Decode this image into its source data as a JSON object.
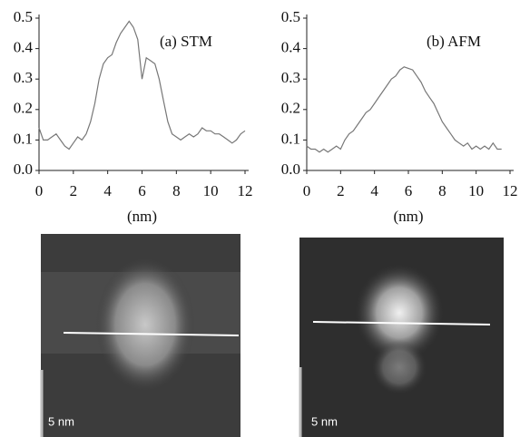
{
  "chart_data": [
    {
      "type": "line",
      "title": "(a) STM",
      "xlabel": "(nm)",
      "color": "#777777",
      "x": [
        0,
        0.25,
        0.5,
        0.75,
        1,
        1.25,
        1.5,
        1.75,
        2,
        2.25,
        2.5,
        2.75,
        3,
        3.25,
        3.5,
        3.75,
        4,
        4.25,
        4.5,
        4.75,
        5,
        5.25,
        5.5,
        5.75,
        6,
        6.25,
        6.5,
        6.75,
        7,
        7.25,
        7.5,
        7.75,
        8,
        8.25,
        8.5,
        8.75,
        9,
        9.25,
        9.5,
        9.75,
        10,
        10.25,
        10.5,
        10.75,
        11,
        11.25,
        11.5,
        11.75,
        12
      ],
      "values": [
        0.14,
        0.1,
        0.1,
        0.11,
        0.12,
        0.1,
        0.08,
        0.07,
        0.09,
        0.11,
        0.1,
        0.12,
        0.16,
        0.22,
        0.3,
        0.35,
        0.37,
        0.38,
        0.42,
        0.45,
        0.47,
        0.49,
        0.47,
        0.43,
        0.3,
        0.37,
        0.36,
        0.35,
        0.3,
        0.23,
        0.16,
        0.12,
        0.11,
        0.1,
        0.11,
        0.12,
        0.11,
        0.12,
        0.14,
        0.13,
        0.13,
        0.12,
        0.12,
        0.11,
        0.1,
        0.09,
        0.1,
        0.12,
        0.13
      ],
      "xlim": [
        0,
        12
      ],
      "xticks": [
        0,
        2,
        4,
        6,
        8,
        10,
        12
      ],
      "ylim": [
        0,
        0.5
      ],
      "yticks": [
        {
          "value": 0,
          "label": "0.0"
        },
        0.1,
        0.2,
        0.3,
        0.4,
        0.5
      ]
    },
    {
      "type": "line",
      "title": "(b) AFM",
      "xlabel": "(nm)",
      "color": "#777777",
      "x": [
        0,
        0.25,
        0.5,
        0.75,
        1,
        1.25,
        1.5,
        1.75,
        2,
        2.25,
        2.5,
        2.75,
        3,
        3.25,
        3.5,
        3.75,
        4,
        4.25,
        4.5,
        4.75,
        5,
        5.25,
        5.5,
        5.75,
        6,
        6.25,
        6.5,
        6.75,
        7,
        7.25,
        7.5,
        7.75,
        8,
        8.25,
        8.5,
        8.75,
        9,
        9.25,
        9.5,
        9.75,
        10,
        10.25,
        10.5,
        10.75,
        11,
        11.25,
        11.5
      ],
      "values": [
        0.08,
        0.07,
        0.07,
        0.06,
        0.07,
        0.06,
        0.07,
        0.08,
        0.07,
        0.1,
        0.12,
        0.13,
        0.15,
        0.17,
        0.19,
        0.2,
        0.22,
        0.24,
        0.26,
        0.28,
        0.3,
        0.31,
        0.33,
        0.34,
        0.335,
        0.33,
        0.31,
        0.29,
        0.26,
        0.24,
        0.22,
        0.19,
        0.16,
        0.14,
        0.12,
        0.1,
        0.09,
        0.08,
        0.09,
        0.07,
        0.08,
        0.07,
        0.08,
        0.07,
        0.09,
        0.07,
        0.07
      ],
      "xlim": [
        0,
        12
      ],
      "xticks": [
        0,
        2,
        4,
        6,
        8,
        10,
        12
      ],
      "ylim": [
        0,
        0.5
      ],
      "yticks": [
        {
          "value": 0,
          "label": "0.0"
        },
        0.1,
        0.2,
        0.3,
        0.4,
        0.5
      ]
    }
  ],
  "images": [
    {
      "scale_label": "5 nm"
    },
    {
      "scale_label": "5 nm"
    }
  ]
}
